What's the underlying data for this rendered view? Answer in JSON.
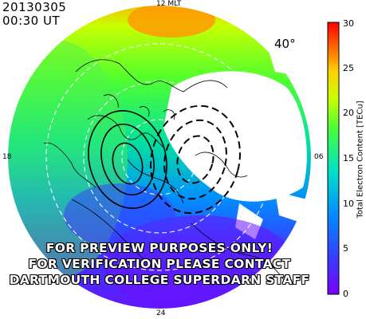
{
  "header": {
    "date": "20130305",
    "time": "00:30 UT"
  },
  "mlt_labels": {
    "top": "12 MLT",
    "left": "18",
    "right": "06",
    "bottom": "24"
  },
  "latitude_label": "40°",
  "colorbar": {
    "title": "Total Electron Content [TECu]",
    "ticks": [
      "0",
      "5",
      "10",
      "15",
      "20",
      "25",
      "30"
    ],
    "range": [
      0,
      30
    ],
    "colors": [
      "#7a00ff",
      "#3a3aff",
      "#0090ff",
      "#00e0c8",
      "#40ff40",
      "#c8ff00",
      "#ffd000",
      "#ff7000",
      "#ff0000"
    ]
  },
  "watermark": {
    "line1": "FOR PREVIEW PURPOSES ONLY!",
    "line2": "FOR VERIFICATION PLEASE CONTACT",
    "line3": "DARTMOUTH COLLEGE SUPERDARN STAFF"
  },
  "colors": {
    "tec_high": "#ff8c00",
    "tec_mid": "#40ff40",
    "tec_low": "#5a2dff",
    "grid": "#ffffff"
  }
}
